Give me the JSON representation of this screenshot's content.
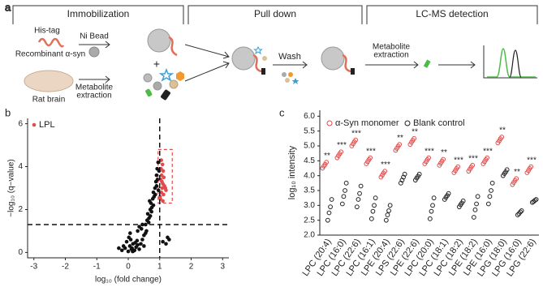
{
  "panel_labels": [
    "a",
    "b",
    "c"
  ],
  "diagram": {
    "headers": [
      "Immobilization",
      "Pull down",
      "LC-MS detection"
    ],
    "his_tag": "His-tag",
    "protein": "Recombinant α-syn",
    "ni_bead": "Ni Bead",
    "rat_brain": "Rat brain",
    "extraction_1": [
      "Metabolite",
      "extraction"
    ],
    "wash": "Wash",
    "extraction_2": [
      "Metabolite",
      "extraction"
    ]
  },
  "chart_data": [
    {
      "type": "scatter",
      "xlabel": "log₁₀ (fold change)",
      "ylabel": "−log₁₀ (q−value)",
      "xlim": [
        -3.2,
        3.2
      ],
      "xticks": [
        -3,
        -2,
        -1,
        0,
        1,
        2,
        3
      ],
      "ylim": [
        -0.25,
        6.25
      ],
      "yticks": [
        0,
        2,
        4,
        6
      ],
      "vline": 1,
      "hline": 1.3,
      "highlight_box": {
        "x": [
          0.95,
          1.4
        ],
        "y": [
          2.3,
          4.8
        ],
        "color": "#e04b4b"
      },
      "legend": "upper left",
      "series": [
        {
          "color": "#111111",
          "x": [
            -0.2,
            -0.1,
            0,
            0.05,
            0.1,
            0.15,
            0.2,
            0.25,
            0.3,
            -0.05,
            0.08,
            0.12,
            0.18,
            0.22,
            0.28,
            0.35,
            -0.15,
            0.02,
            0.06,
            0.14,
            0.4,
            0.45,
            0.5,
            0.3,
            0.35,
            0.42,
            0.55,
            0.6,
            0.62,
            0.66,
            0.7,
            0.72,
            0.75,
            0.78,
            0.8,
            0.82,
            0.85,
            0.88,
            0.9,
            0.92,
            0.95,
            0.7,
            0.74,
            0.8,
            0.86,
            0.9,
            0.93,
            0.58,
            0.65,
            0.68,
            1.1,
            1.2,
            1.25,
            1.3,
            0.5,
            0.55,
            0.45,
            -0.3,
            0.98,
            0.96
          ],
          "values": [
            0.1,
            0.2,
            0.05,
            0.3,
            0.15,
            0.4,
            0.1,
            0.25,
            0.35,
            0.5,
            0.6,
            0.2,
            0.08,
            0.45,
            0.55,
            0.15,
            0.3,
            0.7,
            0.9,
            0.05,
            0.4,
            0.6,
            0.8,
            1.0,
            1.2,
            1.1,
            1.3,
            1.5,
            1.8,
            1.6,
            2.0,
            2.3,
            2.1,
            2.5,
            2.8,
            2.6,
            3.0,
            3.3,
            3.6,
            3.9,
            4.2,
            1.7,
            1.9,
            2.2,
            2.7,
            3.1,
            3.4,
            1.0,
            1.4,
            2.4,
            0.5,
            0.4,
            0.7,
            0.6,
            0.3,
            0.9,
            1.3,
            0.2,
            3.8,
            2.9
          ]
        },
        {
          "name": "LPL",
          "color": "#e04b4b",
          "x": [
            1.02,
            1.05,
            1.08,
            1.1,
            1.03,
            1.12,
            1.06,
            1.15,
            1.04,
            1.09,
            1.2,
            1.07,
            1.13,
            1.01,
            1.11,
            1.18,
            1.05,
            1.1
          ],
          "values": [
            2.5,
            2.8,
            3.0,
            3.2,
            3.4,
            2.7,
            3.6,
            3.1,
            3.9,
            4.1,
            2.9,
            3.3,
            3.5,
            2.6,
            3.8,
            3.0,
            4.3,
            2.4
          ]
        }
      ]
    },
    {
      "type": "strip",
      "ylabel": "log₁₀ intensity",
      "categories": [
        "LPC (20:4)",
        "LPC (16:0)",
        "LPC (22:6)",
        "LPC (16:1)",
        "LPE (20:4)",
        "LPS (22:6)",
        "LPE (22:6)",
        "LPC (20:0)",
        "LPC (18:1)",
        "LPC (18:2)",
        "LPE (18:2)",
        "LPE (16:0)",
        "LPG (18:0)",
        "LPG (16:0)",
        "LPG (22:6)"
      ],
      "significance": [
        "**",
        "***",
        "***",
        "***",
        "***",
        "**",
        "**",
        "***",
        "**",
        "***",
        "***",
        "***",
        "**",
        "**",
        "***"
      ],
      "ylim": [
        2.0,
        6.2
      ],
      "yticks": [
        {
          "value": 2,
          "label": "2.0"
        },
        {
          "value": 2.5,
          "label": "2.5"
        },
        {
          "value": 3,
          "label": "3.0"
        },
        {
          "value": 3.5,
          "label": "3.5"
        },
        {
          "value": 4,
          "label": "4.0"
        },
        {
          "value": 4.5,
          "label": "4.5"
        },
        {
          "value": 5,
          "label": "5.0"
        },
        {
          "value": 5.5,
          "label": "5.5"
        },
        {
          "value": 6,
          "label": "6.0"
        }
      ],
      "legend": "top",
      "series": [
        {
          "name": "α-Syn monomer",
          "color": "#e04b4b",
          "values": [
            [
              4.25,
              4.32,
              4.38,
              4.45
            ],
            [
              4.6,
              4.67,
              4.74,
              4.8
            ],
            [
              5.0,
              5.07,
              5.14,
              5.2
            ],
            [
              4.4,
              4.47,
              4.54,
              4.6
            ],
            [
              3.95,
              4.02,
              4.09,
              4.15
            ],
            [
              4.85,
              4.92,
              4.99,
              5.05
            ],
            [
              5.05,
              5.12,
              5.19,
              5.25
            ],
            [
              4.4,
              4.47,
              4.54,
              4.6
            ],
            [
              4.35,
              4.42,
              4.49,
              4.55
            ],
            [
              4.1,
              4.17,
              4.24,
              4.3
            ],
            [
              4.15,
              4.22,
              4.29,
              4.35
            ],
            [
              4.4,
              4.47,
              4.54,
              4.6
            ],
            [
              5.1,
              5.17,
              5.24,
              5.3
            ],
            [
              3.7,
              3.77,
              3.84,
              3.9
            ],
            [
              4.1,
              4.17,
              4.24,
              4.3
            ]
          ]
        },
        {
          "name": "Blank control",
          "color": "#222222",
          "values": [
            [
              2.5,
              2.75,
              2.95,
              3.2
            ],
            [
              3.05,
              3.3,
              3.5,
              3.75
            ],
            [
              2.95,
              3.2,
              3.4,
              3.65
            ],
            [
              2.55,
              2.8,
              3.0,
              3.25
            ],
            [
              2.5,
              2.68,
              2.82,
              3.0
            ],
            [
              3.75,
              3.85,
              3.95,
              4.05
            ],
            [
              3.85,
              3.92,
              3.98,
              4.05
            ],
            [
              2.55,
              2.8,
              3.0,
              3.25
            ],
            [
              3.2,
              3.27,
              3.33,
              3.4
            ],
            [
              2.95,
              3.02,
              3.08,
              3.15
            ],
            [
              2.6,
              2.85,
              3.05,
              3.3
            ],
            [
              3.05,
              3.3,
              3.5,
              3.75
            ],
            [
              4.0,
              4.07,
              4.13,
              4.2
            ],
            [
              2.68,
              2.72,
              2.78,
              2.82
            ],
            [
              3.1,
              3.13,
              3.17,
              3.2
            ]
          ]
        }
      ]
    }
  ]
}
